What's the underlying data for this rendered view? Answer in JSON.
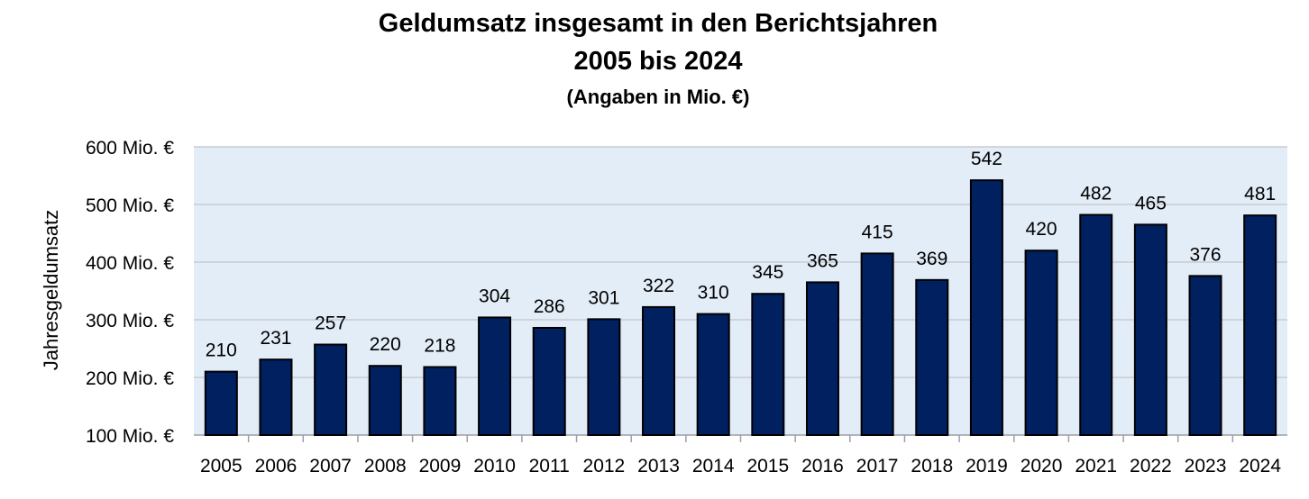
{
  "chart_data": {
    "type": "bar",
    "title": "Geldumsatz insgesamt in den Berichtsjahren",
    "title_line2": "2005 bis 2024",
    "subtitle": "(Angaben in Mio. €)",
    "ylabel": "Jahresgeldumsatz",
    "xlabel": "",
    "ylim": [
      100,
      600
    ],
    "yticks": [
      100,
      200,
      300,
      400,
      500,
      600
    ],
    "ytick_labels": [
      "100 Mio. €",
      "200 Mio. €",
      "300 Mio. €",
      "400 Mio. €",
      "500 Mio. €",
      "600 Mio. €"
    ],
    "categories": [
      "2005",
      "2006",
      "2007",
      "2008",
      "2009",
      "2010",
      "2011",
      "2012",
      "2013",
      "2014",
      "2015",
      "2016",
      "2017",
      "2018",
      "2019",
      "2020",
      "2021",
      "2022",
      "2023",
      "2024"
    ],
    "values": [
      210,
      231,
      257,
      220,
      218,
      304,
      286,
      301,
      322,
      310,
      345,
      365,
      415,
      369,
      542,
      420,
      482,
      465,
      376,
      481
    ],
    "grid": true,
    "colors": {
      "bar": "#002060",
      "plot_background": "#E3EDF8",
      "gridline": "#C8CCD2"
    }
  }
}
